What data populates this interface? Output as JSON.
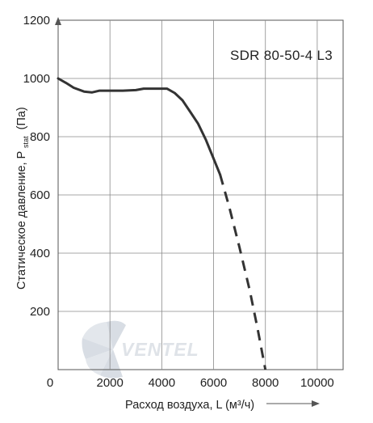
{
  "chart_data": {
    "type": "line",
    "title": "SDR 80-50-4 L3",
    "xlabel": "Расход воздуха, L (м³/ч)",
    "ylabel_main": "Статическое давление, P",
    "ylabel_sub": "stat",
    "ylabel_unit": "(Па)",
    "xlim": [
      0,
      11000
    ],
    "ylim": [
      0,
      1200
    ],
    "x_ticks": [
      0,
      2000,
      4000,
      6000,
      8000,
      10000
    ],
    "y_ticks": [
      200,
      400,
      600,
      800,
      1000,
      1200
    ],
    "grid": true,
    "series": [
      {
        "style": "solid",
        "color": "#333333",
        "x": [
          0,
          300,
          600,
          1000,
          1300,
          1600,
          2000,
          2500,
          3000,
          3300,
          3600,
          4000,
          4200,
          4500,
          4800,
          5100,
          5400,
          5700,
          6000,
          6250
        ],
        "y": [
          1000,
          985,
          968,
          955,
          952,
          958,
          958,
          958,
          960,
          965,
          965,
          965,
          965,
          950,
          925,
          885,
          845,
          790,
          725,
          670
        ]
      },
      {
        "style": "dashed",
        "color": "#333333",
        "x": [
          6250,
          6600,
          7000,
          7400,
          7700,
          8000
        ],
        "y": [
          670,
          560,
          420,
          270,
          140,
          0
        ]
      }
    ]
  },
  "watermark": {
    "brand": "VENTEL"
  }
}
